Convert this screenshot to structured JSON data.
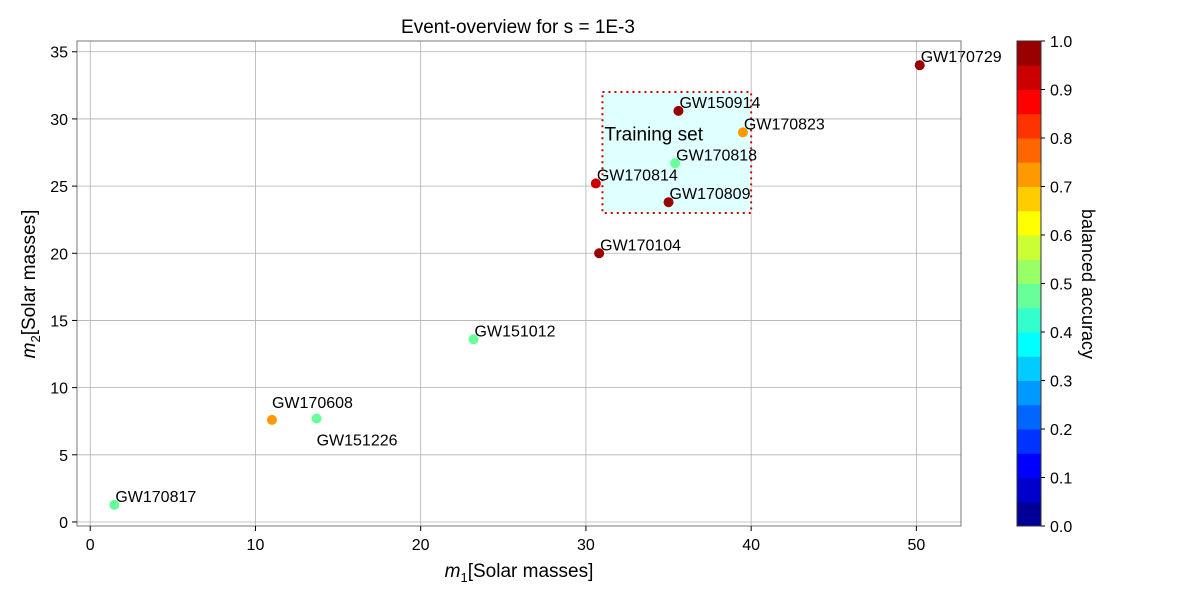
{
  "chart_data": {
    "type": "scatter",
    "title": "Event-overview for s = 1E-3",
    "xlabel": {
      "symbol": "m",
      "sub": "1",
      "suffix": "[Solar masses]"
    },
    "ylabel": {
      "symbol": "m",
      "sub": "2",
      "suffix": "[Solar masses]"
    },
    "xlim": [
      -0.8,
      52.7
    ],
    "ylim": [
      -0.3,
      35.8
    ],
    "x_ticks": [
      "0",
      "10",
      "20",
      "30",
      "40",
      "50"
    ],
    "y_ticks": [
      "0",
      "5",
      "10",
      "15",
      "20",
      "25",
      "30",
      "35"
    ],
    "grid": true,
    "colormap": "jet",
    "colorbar": {
      "label": "balanced accuracy",
      "range": [
        0.0,
        1.0
      ],
      "levels": 20,
      "ticks": [
        "0.0",
        "0.1",
        "0.2",
        "0.3",
        "0.4",
        "0.5",
        "0.6",
        "0.7",
        "0.8",
        "0.9",
        "1.0"
      ]
    },
    "points": [
      {
        "name": "GW150914",
        "x": 35.6,
        "y": 30.6,
        "value": 0.97
      },
      {
        "name": "GW151012",
        "x": 23.2,
        "y": 13.6,
        "value": 0.48
      },
      {
        "name": "GW151226",
        "x": 13.7,
        "y": 7.7,
        "value": 0.48
      },
      {
        "name": "GW170104",
        "x": 30.8,
        "y": 20.0,
        "value": 0.97
      },
      {
        "name": "GW170608",
        "x": 11.0,
        "y": 7.6,
        "value": 0.72
      },
      {
        "name": "GW170729",
        "x": 50.2,
        "y": 34.0,
        "value": 0.97
      },
      {
        "name": "GW170809",
        "x": 35.0,
        "y": 23.8,
        "value": 0.97
      },
      {
        "name": "GW170814",
        "x": 30.6,
        "y": 25.2,
        "value": 0.92
      },
      {
        "name": "GW170817",
        "x": 1.46,
        "y": 1.27,
        "value": 0.48
      },
      {
        "name": "GW170818",
        "x": 35.4,
        "y": 26.7,
        "value": 0.48
      },
      {
        "name": "GW170823",
        "x": 39.5,
        "y": 29.0,
        "value": 0.72
      }
    ],
    "region": {
      "label": "Training set",
      "x": [
        31,
        40
      ],
      "y": [
        23,
        32
      ],
      "fill": "#e0ffff",
      "border": "#cc0000"
    }
  }
}
